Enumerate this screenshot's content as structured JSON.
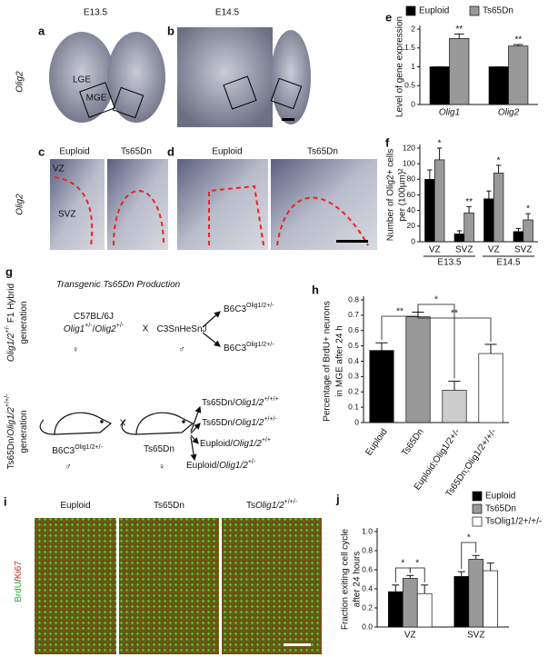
{
  "figure": {
    "columns": [
      "E13.5",
      "E14.5"
    ],
    "row_label_top": "Olig2",
    "row_label_mid": "Olig2",
    "panel_a": {
      "letter": "a",
      "labels": [
        "LGE",
        "MGE"
      ]
    },
    "panel_b": {
      "letter": "b"
    },
    "panel_c": {
      "letter": "c",
      "headers": [
        "Euploid",
        "Ts65Dn"
      ],
      "labels": [
        "VZ",
        "SVZ"
      ]
    },
    "panel_d": {
      "letter": "d",
      "headers": [
        "Euploid",
        "Ts65Dn"
      ]
    },
    "panel_g": {
      "letter": "g",
      "title": [
        {
          "t": "Transgenic Ts65Dn Production",
          "style": "italic"
        }
      ],
      "row1_label": [
        [
          {
            "t": "Olig1/2",
            "style": "italic"
          },
          {
            "t": "+/-",
            "style": "sup"
          },
          {
            "t": " F1 Hybrid"
          }
        ],
        [
          {
            "t": "generation"
          }
        ]
      ],
      "row2_label": [
        [
          {
            "t": "Ts65Dn/"
          },
          {
            "t": "Olig1/2",
            "style": "italic"
          },
          {
            "t": "+/+/-",
            "style": "sup"
          }
        ],
        [
          {
            "t": "generation"
          }
        ]
      ],
      "parent1": [
        [
          {
            "t": "C57BL/6J"
          }
        ],
        [
          {
            "t": "Olig1",
            "style": "italic"
          },
          {
            "t": "+/-",
            "style": "sup"
          },
          {
            "t": "/"
          },
          {
            "t": "Olig2",
            "style": "italic"
          },
          {
            "t": "+/-",
            "style": "sup"
          }
        ]
      ],
      "cross": "X",
      "parent2": [
        {
          "t": "C3SnHeSnJ"
        }
      ],
      "female": "♀",
      "male": "♂",
      "f1": [
        [
          {
            "t": "B6C3"
          },
          {
            "t": "Olig1/2+/-",
            "style": "sup"
          }
        ],
        [
          {
            "t": "B6C3"
          },
          {
            "t": "Olig1/2+/-",
            "style": "sup"
          }
        ]
      ],
      "parent3": [
        {
          "t": "B6C3"
        },
        {
          "t": "Olig1/2+/-",
          "style": "sup"
        }
      ],
      "parent4": [
        {
          "t": "Ts65Dn"
        }
      ],
      "offspring": [
        [
          {
            "t": "Ts65Dn/"
          },
          {
            "t": "Olig1/2",
            "style": "italic"
          },
          {
            "t": "+/+/+",
            "style": "sup"
          }
        ],
        [
          {
            "t": "Ts65Dn/"
          },
          {
            "t": "Olig1/2",
            "style": "italic"
          },
          {
            "t": "+/+/-",
            "style": "sup"
          }
        ],
        [
          {
            "t": "Euploid/"
          },
          {
            "t": "Olig1/2",
            "style": "italic"
          },
          {
            "t": "+/+",
            "style": "sup"
          }
        ],
        [
          {
            "t": "Euploid/"
          },
          {
            "t": "Olig1/2",
            "style": "italic"
          },
          {
            "t": "+/-",
            "style": "sup"
          }
        ]
      ]
    },
    "panel_i": {
      "letter": "i",
      "headers": [
        [
          {
            "t": "Euploid"
          }
        ],
        [
          {
            "t": "Ts65Dn"
          }
        ],
        [
          {
            "t": "Ts"
          },
          {
            "t": "Olig1/2",
            "style": "italic"
          },
          {
            "t": "+/+/-",
            "style": "sup"
          }
        ]
      ],
      "stain": [
        {
          "t": "BrdU",
          "color": "#3a3"
        },
        {
          "t": "/"
        },
        {
          "t": "Ki67",
          "color": "#c22"
        }
      ]
    }
  },
  "chart_data": [
    {
      "type": "bar",
      "letter": "e",
      "y_label": [
        "Level of gene expression"
      ],
      "categories": [
        "Olig1",
        "Olig2"
      ],
      "series": [
        {
          "name": "Euploid",
          "color": "#000000",
          "values": [
            1,
            1
          ],
          "errors": [
            0,
            0
          ]
        },
        {
          "name": "Ts65Dn",
          "color": "#999999",
          "values": [
            1.75,
            1.55
          ],
          "errors": [
            0.12,
            0.04
          ]
        }
      ],
      "ylim": [
        0,
        2
      ],
      "yticks": [
        0,
        0.5,
        1,
        1.5,
        2
      ],
      "annotations": [
        "**",
        "**"
      ]
    },
    {
      "type": "bar",
      "letter": "f",
      "y_label": [
        "Number of Olig2+ cells",
        "per (100µm)²"
      ],
      "categories": [
        "VZ",
        "SVZ",
        "VZ",
        "SVZ"
      ],
      "groups": [
        "E13.5",
        "E14.5"
      ],
      "series": [
        {
          "name": "Euploid",
          "color": "#000000",
          "values": [
            80,
            10,
            55,
            13
          ],
          "errors": [
            12,
            4,
            10,
            4
          ]
        },
        {
          "name": "Ts65Dn",
          "color": "#999999",
          "values": [
            105,
            37,
            88,
            28
          ],
          "errors": [
            15,
            8,
            10,
            8
          ]
        }
      ],
      "ylim": [
        0,
        120
      ],
      "yticks": [
        0,
        20,
        40,
        60,
        80,
        100,
        120
      ],
      "annotations": [
        "*",
        "**",
        "*",
        "*"
      ]
    },
    {
      "type": "bar",
      "letter": "h",
      "y_label": [
        "Percentage of BrdU+ neurons",
        "in MGE after 24 h"
      ],
      "categories": [
        "Euploid",
        "Ts65Dn",
        "Euploid;Olig1/2+/-",
        "Ts65Dn;Olig1/2+/+/-"
      ],
      "values": [
        0.47,
        0.69,
        0.21,
        0.45
      ],
      "errors": [
        0.05,
        0.03,
        0.06,
        0.06
      ],
      "colors": [
        "#000000",
        "#999999",
        "#cccccc",
        "#ffffff"
      ],
      "ylim": [
        0,
        0.8
      ],
      "yticks": [
        0,
        0.1,
        0.2,
        0.3,
        0.4,
        0.5,
        0.6,
        0.7,
        0.8
      ],
      "annotations": [
        "**",
        "*",
        "**"
      ]
    },
    {
      "type": "bar",
      "letter": "j",
      "y_label": [
        "Fraction exiting cell cycle",
        "after 24 hours"
      ],
      "categories": [
        "VZ",
        "SVZ"
      ],
      "series": [
        {
          "name": "Euploid",
          "color": "#000000",
          "values": [
            0.37,
            0.53
          ],
          "errors": [
            0.07,
            0.05
          ]
        },
        {
          "name": "Ts65Dn",
          "color": "#999999",
          "values": [
            0.51,
            0.71
          ],
          "errors": [
            0.03,
            0.04
          ]
        },
        {
          "name": "TsOlig1/2+/+/-",
          "color": "#ffffff",
          "values": [
            0.35,
            0.59
          ],
          "errors": [
            0.09,
            0.08
          ]
        }
      ],
      "ylim": [
        0,
        1
      ],
      "yticks": [
        {
          "value": 0,
          "label": "0.0"
        },
        0.2,
        0.4,
        0.6,
        0.8,
        {
          "value": 1,
          "label": "1.0"
        }
      ],
      "annotations": [
        "*",
        "*",
        "*"
      ]
    }
  ]
}
